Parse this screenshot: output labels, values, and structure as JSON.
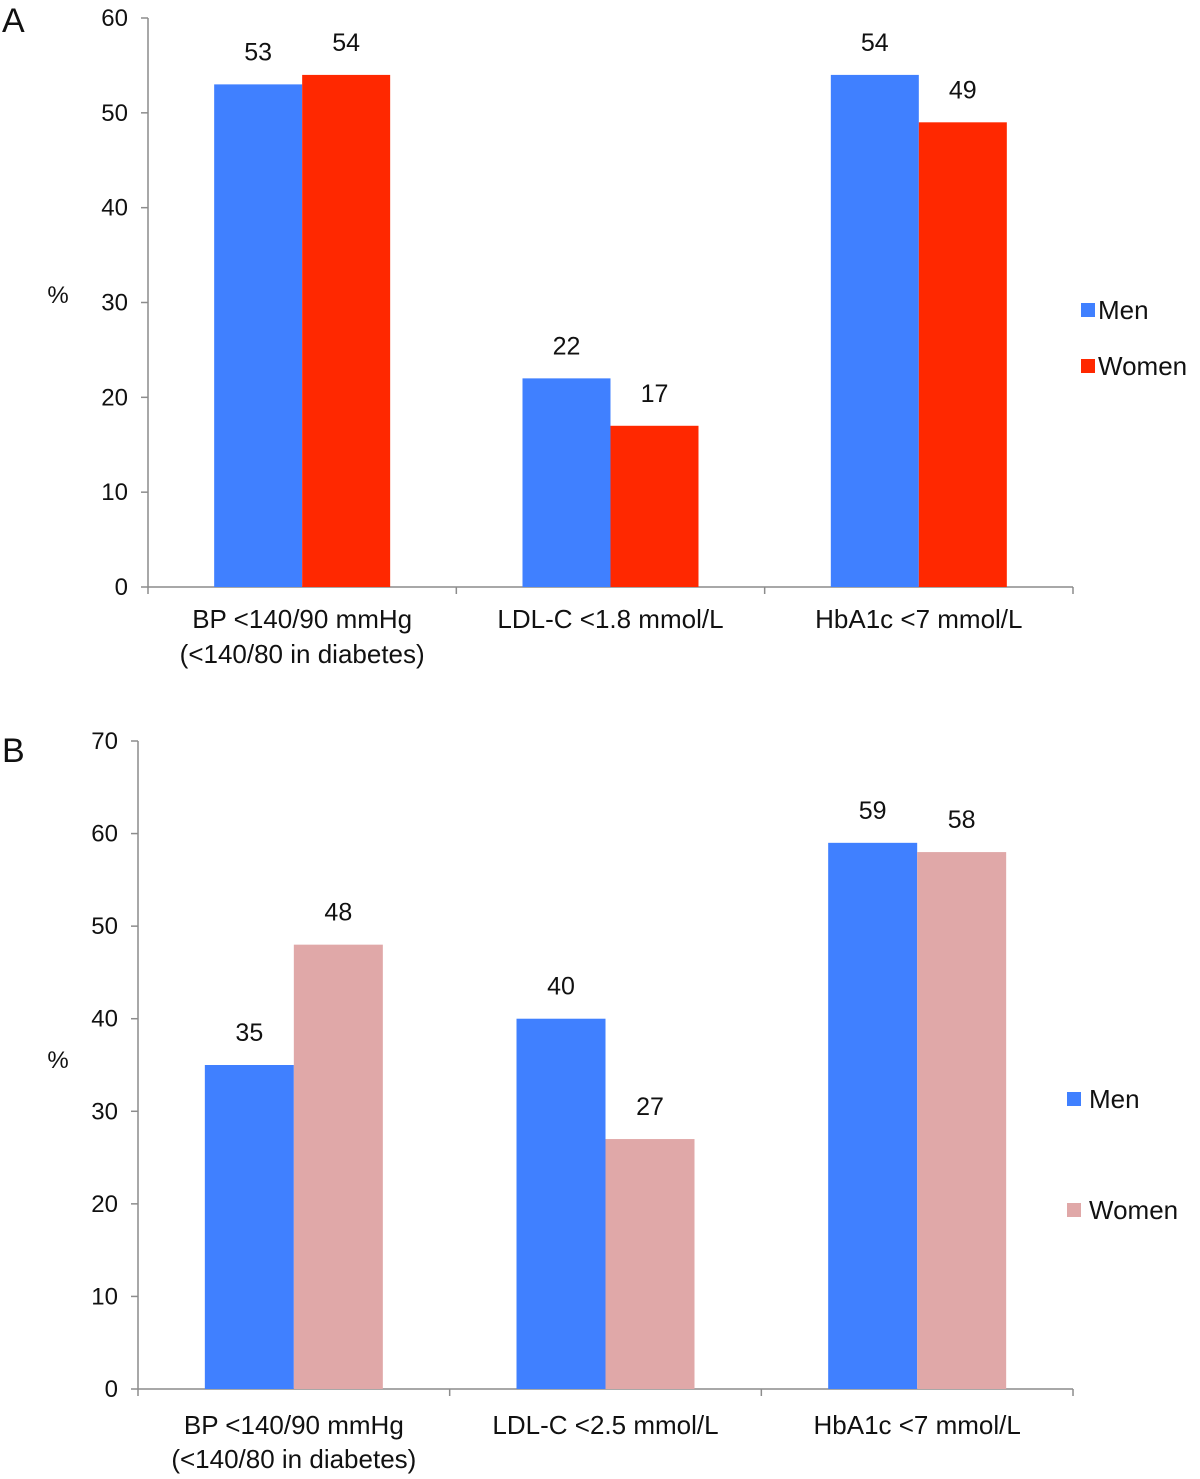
{
  "chart_data": [
    {
      "type": "bar",
      "panel_label": "A",
      "ylabel": "%",
      "ylim": [
        0,
        60
      ],
      "yticks": [
        0,
        10,
        20,
        30,
        40,
        50,
        60
      ],
      "categories": [
        [
          "BP <140/90 mmHg",
          "(<140/80 in diabetes)"
        ],
        [
          "LDL-C <1.8 mmol/L"
        ],
        [
          "HbA1c <7 mmol/L"
        ]
      ],
      "series": [
        {
          "name": "Men",
          "color": "#4080ff",
          "values": [
            53,
            22,
            54
          ]
        },
        {
          "name": "Women",
          "color": "#ff2800",
          "values": [
            54,
            17,
            49
          ]
        }
      ],
      "legend": "right"
    },
    {
      "type": "bar",
      "panel_label": "B",
      "ylabel": "%",
      "ylim": [
        0,
        70
      ],
      "yticks": [
        0,
        10,
        20,
        30,
        40,
        50,
        60,
        70
      ],
      "categories": [
        [
          "BP <140/90 mmHg",
          "(<140/80 in diabetes)"
        ],
        [
          "LDL-C <2.5 mmol/L"
        ],
        [
          "HbA1c <7 mmol/L"
        ]
      ],
      "series": [
        {
          "name": "Men",
          "color": "#4080ff",
          "values": [
            35,
            40,
            59
          ]
        },
        {
          "name": "Women",
          "color": "#e0a8a8",
          "values": [
            48,
            27,
            58
          ]
        }
      ],
      "legend": "right"
    }
  ]
}
